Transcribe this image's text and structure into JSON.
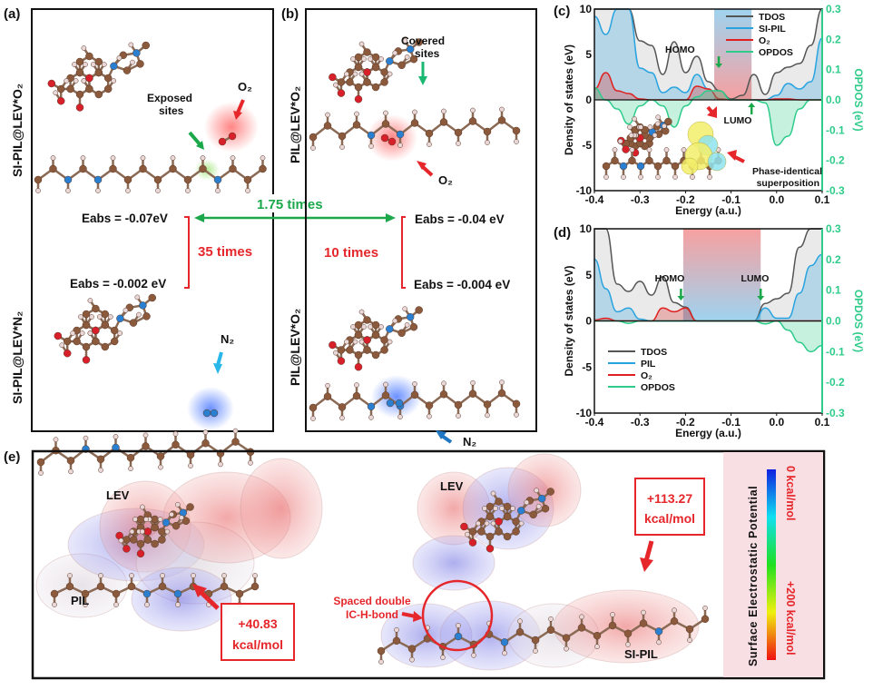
{
  "panel_a": {
    "label": "(a)",
    "top_title": "SI-PIL@LEV*O₂",
    "bottom_title": "SI-PIL@LEV*N₂",
    "exposed_sites": [
      "Exposed",
      "sites"
    ],
    "o2": "O₂",
    "n2": "N₂",
    "eabs_o2": "Eabs = -0.07eV",
    "eabs_n2": "Eabs = -0.002 eV",
    "ratio": "35 times"
  },
  "panel_b": {
    "label": "(b)",
    "top_title": "PIL@LEV*O₂",
    "bottom_title": "PIL@LEV*O₂",
    "covered_sites": [
      "Covered",
      "sites"
    ],
    "o2": "O₂",
    "n2": "N₂",
    "eabs_o2": "Eabs = -0.04 eV",
    "eabs_n2": "Eabs = -0.004 eV",
    "ratio": "10 times"
  },
  "comparison": "1.75 times",
  "chart_data": [
    {
      "panel": "(c)",
      "type": "area",
      "xlabel": "Energy (a.u.)",
      "ylabel": "Density of states (eV)",
      "y2label": "OPDOS (eV)",
      "xlim": [
        -0.4,
        0.1
      ],
      "ylim": [
        -10,
        10
      ],
      "y2lim": [
        -0.3,
        0.3
      ],
      "xticks": [
        "-0.4",
        "-0.3",
        "-0.2",
        "-0.1",
        "0.0",
        "0.1"
      ],
      "yticks": [
        "10",
        "5",
        "0",
        "-5",
        "-10"
      ],
      "y2ticks": [
        "0.3",
        "0.2",
        "0.1",
        "0.0",
        "-0.1",
        "-0.2",
        "-0.3"
      ],
      "legend_position": "top-right",
      "x": [
        -0.4,
        -0.375,
        -0.35,
        -0.325,
        -0.3,
        -0.275,
        -0.25,
        -0.225,
        -0.2,
        -0.175,
        -0.15,
        -0.125,
        -0.1,
        -0.075,
        -0.05,
        -0.025,
        0,
        0.025,
        0.05,
        0.075,
        0.1
      ],
      "series": [
        {
          "name": "TDOS",
          "color": "#555555",
          "axis": "left",
          "values": [
            10,
            10,
            10,
            10,
            6.5,
            6,
            2.8,
            6.4,
            3,
            4.8,
            2,
            1,
            0.1,
            0.5,
            2.8,
            0.6,
            3,
            3.6,
            4,
            6,
            10
          ]
        },
        {
          "name": "SI-PIL",
          "color": "#29a3e0",
          "axis": "left",
          "values": [
            9.2,
            7.2,
            10,
            10,
            3.5,
            3,
            0.8,
            1.4,
            0.8,
            2.8,
            1.2,
            0.1,
            0,
            0,
            0,
            0,
            0.5,
            1.8,
            1.2,
            2,
            6.8
          ]
        },
        {
          "name": "O₂",
          "color": "#e02020",
          "axis": "left",
          "values": [
            1.2,
            3,
            1,
            0.7,
            0.1,
            0,
            0,
            0,
            0,
            1.5,
            1.2,
            0.1,
            0,
            0,
            0,
            0,
            0.1,
            0.1,
            0,
            0,
            0
          ]
        },
        {
          "name": "OPDOS",
          "color": "#2ecc8a",
          "axis": "right",
          "values": [
            0.04,
            0,
            -0.03,
            -0.08,
            -0.02,
            0,
            -0.02,
            -0.09,
            -0.02,
            0.01,
            0.03,
            0.03,
            0,
            0,
            0,
            -0.01,
            -0.15,
            -0.12,
            -0.03,
            0,
            0
          ]
        }
      ],
      "gap_band": [
        -0.137,
        -0.055
      ],
      "annotations": {
        "homo": "HOMO",
        "lumo": "LUMO",
        "homo_x": -0.135,
        "lumo_x": -0.055,
        "inset": [
          "Phase-identical",
          "superposition"
        ]
      }
    },
    {
      "panel": "(d)",
      "type": "area",
      "xlabel": "Energy (a.u.)",
      "ylabel": "Density of states (eV)",
      "y2label": "OPDOS (eV)",
      "xlim": [
        -0.4,
        0.1
      ],
      "ylim": [
        -10,
        10
      ],
      "y2lim": [
        -0.3,
        0.3
      ],
      "xticks": [
        "-0.4",
        "-0.3",
        "-0.2",
        "-0.1",
        "0.0",
        "0.1"
      ],
      "yticks": [
        "10",
        "5",
        "0",
        "-5",
        "-10"
      ],
      "y2ticks": [
        "0.3",
        "0.2",
        "0.1",
        "0.0",
        "-0.1",
        "-0.2",
        "-0.3"
      ],
      "legend_position": "bottom-left",
      "x": [
        -0.4,
        -0.375,
        -0.35,
        -0.325,
        -0.3,
        -0.275,
        -0.25,
        -0.225,
        -0.2,
        -0.175,
        -0.15,
        -0.125,
        -0.1,
        -0.075,
        -0.05,
        -0.025,
        0,
        0.025,
        0.05,
        0.075,
        0.1
      ],
      "series": [
        {
          "name": "TDOS",
          "color": "#555555",
          "axis": "left",
          "values": [
            10,
            10,
            4,
            3.2,
            4.3,
            2.8,
            4.8,
            2,
            1.5,
            0,
            0,
            0,
            0,
            0,
            0,
            1.9,
            2.4,
            3,
            8,
            10,
            10
          ]
        },
        {
          "name": "PIL",
          "color": "#29a3e0",
          "axis": "left",
          "values": [
            6.7,
            3.5,
            1,
            1.4,
            0.2,
            0,
            0,
            0,
            0,
            0,
            0,
            0,
            0,
            0,
            0,
            1.4,
            0.3,
            0.3,
            3,
            6,
            7.2
          ]
        },
        {
          "name": "O₂",
          "color": "#e02020",
          "axis": "left",
          "values": [
            0.1,
            0.3,
            0,
            0,
            0,
            0,
            1.4,
            1,
            1.4,
            0,
            0,
            0,
            0,
            0,
            0,
            0,
            0,
            0,
            0,
            0,
            0
          ]
        },
        {
          "name": "OPDOS",
          "color": "#2ecc8a",
          "axis": "right",
          "values": [
            0,
            0,
            0,
            -0.008,
            0,
            0,
            0,
            0,
            0,
            0,
            0,
            0,
            0,
            0,
            0,
            -0.01,
            0,
            -0.03,
            -0.07,
            -0.1,
            -0.08
          ]
        }
      ],
      "gap_band": [
        -0.205,
        -0.035
      ],
      "annotations": {
        "homo": "HOMO",
        "lumo": "LUMO",
        "homo_x": -0.21,
        "lumo_x": -0.035
      }
    }
  ],
  "panel_e": {
    "label": "(e)",
    "lev_left": "LEV",
    "pil": "PIL",
    "value_left": [
      "+40.83",
      "kcal/mol"
    ],
    "lev_right": "LEV",
    "si_pil": "SI-PIL",
    "value_right": [
      "+113.27",
      "kcal/mol"
    ],
    "bond_label": [
      "Spaced double",
      "IC-H-bond"
    ],
    "colorbar_title": "Surface Electrostatic Potential",
    "colorbar_min": "0 kcal/mol",
    "colorbar_max": "+200 kcal/mol"
  },
  "colors": {
    "red": "#e5262b",
    "green": "#1aa84b",
    "blue": "#29a3e0",
    "opdos": "#2ecc8a",
    "carbon": "#8b5a3c",
    "nitrogen": "#2a7fd0",
    "oxygen": "#d8202a"
  }
}
